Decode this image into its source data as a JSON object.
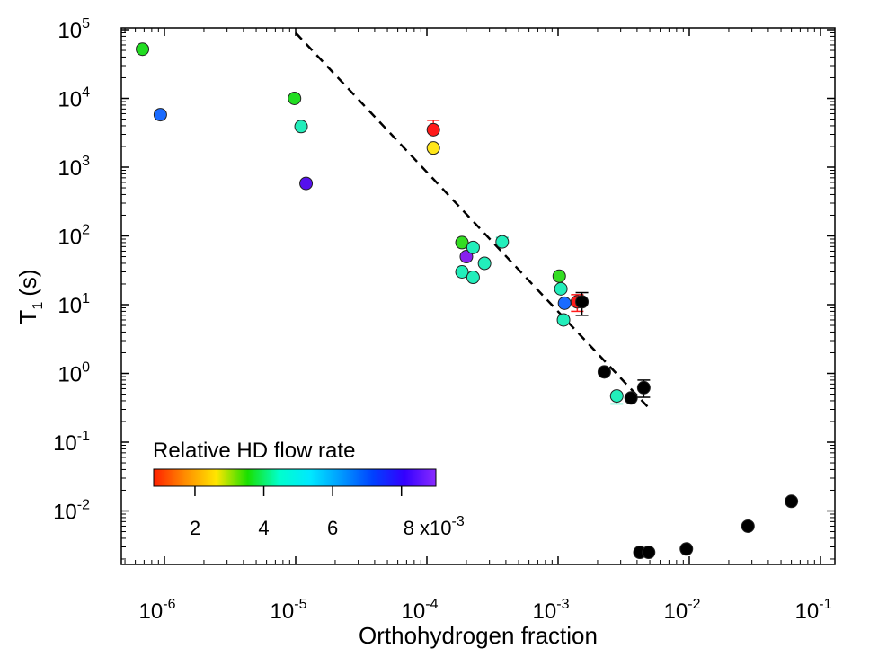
{
  "chart_data": {
    "type": "scatter",
    "title": "",
    "xlabel": "Orthohydrogen fraction",
    "ylabel": "T",
    "ylabel_subscript": "1",
    "ylabel_unit": "(s)",
    "xscale": "log",
    "yscale": "log",
    "xlim": [
      5e-07,
      0.1
    ],
    "ylim": [
      0.0013,
      100000
    ],
    "x_ticks": [
      {
        "value": 1e-06,
        "base": "10",
        "exp": "-6"
      },
      {
        "value": 1e-05,
        "base": "10",
        "exp": "-5"
      },
      {
        "value": 0.0001,
        "base": "10",
        "exp": "-4"
      },
      {
        "value": 0.001,
        "base": "10",
        "exp": "-3"
      },
      {
        "value": 0.01,
        "base": "10",
        "exp": "-2"
      },
      {
        "value": 0.1,
        "base": "10",
        "exp": "-1"
      }
    ],
    "y_ticks": [
      {
        "value": 0.01,
        "base": "10",
        "exp": "-2"
      },
      {
        "value": 0.1,
        "base": "10",
        "exp": "-1"
      },
      {
        "value": 1.0,
        "base": "10",
        "exp": "0"
      },
      {
        "value": 10.0,
        "base": "10",
        "exp": "1"
      },
      {
        "value": 100.0,
        "base": "10",
        "exp": "2"
      },
      {
        "value": 1000.0,
        "base": "10",
        "exp": "3"
      },
      {
        "value": 10000.0,
        "base": "10",
        "exp": "4"
      },
      {
        "value": 100000.0,
        "base": "10",
        "exp": "5"
      }
    ],
    "fit_line": {
      "style": "dashed",
      "color": "#000000",
      "x": [
        1e-05,
        0.0048
      ],
      "y": [
        90000,
        0.33
      ]
    },
    "colorbar": {
      "title": "Relative HD flow rate",
      "range": [
        0.8,
        9.0
      ],
      "ticks": [
        {
          "value": 2,
          "label": "2"
        },
        {
          "value": 4,
          "label": "4"
        },
        {
          "value": 6,
          "label": "6"
        },
        {
          "value": 8,
          "label": "8 x10",
          "exp": "-3"
        }
      ],
      "gradient": [
        "#ff2000",
        "#ff8c00",
        "#ffe600",
        "#19e000",
        "#00ffcc",
        "#00e8ff",
        "#0098ff",
        "#0040ff",
        "#3300ff",
        "#8a2bff"
      ]
    },
    "points": [
      {
        "x": 6.8e-07,
        "y": 52000,
        "color": "#22dd22"
      },
      {
        "x": 9.3e-07,
        "y": 5800,
        "color": "#1a6bff"
      },
      {
        "x": 9.8e-06,
        "y": 10000,
        "color": "#22dd22"
      },
      {
        "x": 1.1e-05,
        "y": 3900,
        "color": "#22eebb"
      },
      {
        "x": 1.2e-05,
        "y": 580,
        "color": "#5511ee"
      },
      {
        "x": 0.000112,
        "y": 3500,
        "color": "#ff1a1a",
        "err_up": 4800
      },
      {
        "x": 0.000112,
        "y": 1900,
        "color": "#ffe61a"
      },
      {
        "x": 0.000185,
        "y": 80,
        "color": "#33dd22"
      },
      {
        "x": 0.000185,
        "y": 30,
        "color": "#22eebb"
      },
      {
        "x": 0.0002,
        "y": 50,
        "color": "#8822ee"
      },
      {
        "x": 0.000225,
        "y": 68,
        "color": "#22eebb"
      },
      {
        "x": 0.000225,
        "y": 25,
        "color": "#22eebb"
      },
      {
        "x": 0.000275,
        "y": 40,
        "color": "#22eebb"
      },
      {
        "x": 0.000375,
        "y": 82,
        "color": "#22eebb",
        "err_up": 95
      },
      {
        "x": 0.00102,
        "y": 26,
        "color": "#33dd22"
      },
      {
        "x": 0.00105,
        "y": 17,
        "color": "#22eebb"
      },
      {
        "x": 0.0011,
        "y": 6,
        "color": "#22eebb"
      },
      {
        "x": 0.00112,
        "y": 10.5,
        "color": "#1a6bff"
      },
      {
        "x": 0.0014,
        "y": 11,
        "color": "#ff1a1a",
        "err_up": 14,
        "err_down": 8
      },
      {
        "x": 0.00152,
        "y": 11,
        "color": "#000000",
        "err_up": 15,
        "err_down": 7
      },
      {
        "x": 0.00225,
        "y": 1.05,
        "color": "#000000"
      },
      {
        "x": 0.0028,
        "y": 0.47,
        "color": "#22eebb",
        "err_down": 0.36
      },
      {
        "x": 0.0036,
        "y": 0.44,
        "color": "#000000"
      },
      {
        "x": 0.0045,
        "y": 0.62,
        "color": "#000000",
        "err_up": 0.8,
        "err_down": 0.45
      },
      {
        "x": 0.0042,
        "y": 0.0025,
        "color": "#000000"
      },
      {
        "x": 0.0049,
        "y": 0.0025,
        "color": "#000000"
      },
      {
        "x": 0.0095,
        "y": 0.0028,
        "color": "#000000"
      },
      {
        "x": 0.028,
        "y": 0.006,
        "color": "#000000"
      },
      {
        "x": 0.06,
        "y": 0.0138,
        "color": "#000000"
      }
    ]
  }
}
